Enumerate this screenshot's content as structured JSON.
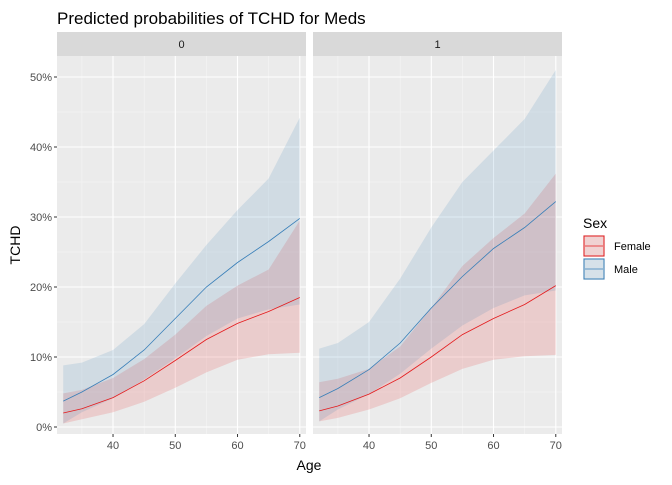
{
  "chart_data": {
    "type": "line",
    "title": "Predicted probabilities of TCHD for Meds",
    "xlabel": "Age",
    "ylabel": "TCHD",
    "xlim": [
      31,
      71
    ],
    "ylim": [
      -1,
      53
    ],
    "x_ticks": [
      40,
      50,
      60,
      70
    ],
    "x_tick_labels": [
      "40",
      "50",
      "60",
      "70"
    ],
    "y_ticks": [
      0,
      10,
      20,
      30,
      40,
      50
    ],
    "y_tick_labels": [
      "0%",
      "10%",
      "20%",
      "30%",
      "40%",
      "50%"
    ],
    "grid": true,
    "legend": {
      "title": "Sex",
      "position": "right",
      "entries": [
        "Female",
        "Male"
      ]
    },
    "colors": {
      "Female": "#e41a1c",
      "Male": "#377eb8",
      "panel_bg": "#ebebeb",
      "strip_bg": "#d9d9d9"
    },
    "panels": [
      {
        "label": "0",
        "series": [
          {
            "name": "Female",
            "x": [
              32,
              35,
              40,
              45,
              50,
              55,
              60,
              65,
              70
            ],
            "y": [
              2,
              2.6,
              4.2,
              6.6,
              9.5,
              12.5,
              14.8,
              16.5,
              18.5
            ],
            "lower": [
              0.5,
              1.1,
              2.1,
              3.6,
              5.6,
              7.8,
              9.6,
              10.4,
              10.6
            ],
            "upper": [
              4.8,
              5.3,
              7,
              9.7,
              13.2,
              17.3,
              20.2,
              22.5,
              29.5
            ]
          },
          {
            "name": "Male",
            "x": [
              32,
              35,
              40,
              45,
              50,
              55,
              60,
              65,
              70
            ],
            "y": [
              3.7,
              5,
              7.5,
              11,
              15.5,
              20,
              23.5,
              26.5,
              29.8
            ],
            "lower": [
              0.5,
              2.1,
              4.1,
              6.8,
              9.8,
              13,
              15.5,
              16.8,
              17.5
            ],
            "upper": [
              8.8,
              9.2,
              11,
              14.7,
              20.5,
              26,
              31,
              35.5,
              44.2
            ]
          }
        ]
      },
      {
        "label": "1",
        "series": [
          {
            "name": "Female",
            "x": [
              32,
              35,
              40,
              45,
              50,
              55,
              60,
              65,
              70
            ],
            "y": [
              2.3,
              3,
              4.7,
              7,
              10,
              13.2,
              15.5,
              17.5,
              20.2
            ],
            "lower": [
              0.8,
              1.3,
              2.5,
              4.1,
              6.3,
              8.3,
              9.6,
              10.1,
              10.3
            ],
            "upper": [
              6.4,
              6.9,
              8.3,
              11.5,
              17,
              23,
              27,
              30.5,
              36.2
            ]
          },
          {
            "name": "Male",
            "x": [
              32,
              35,
              40,
              45,
              50,
              55,
              60,
              65,
              70
            ],
            "y": [
              4.2,
              5.5,
              8.2,
              12,
              17,
              21.5,
              25.5,
              28.5,
              32.2
            ],
            "lower": [
              0.8,
              2.5,
              4.7,
              7.6,
              11.2,
              14.5,
              17,
              18.8,
              19.5
            ],
            "upper": [
              11.2,
              12,
              15,
              21.2,
              28.5,
              35,
              39.5,
              44,
              51
            ]
          }
        ]
      }
    ]
  }
}
